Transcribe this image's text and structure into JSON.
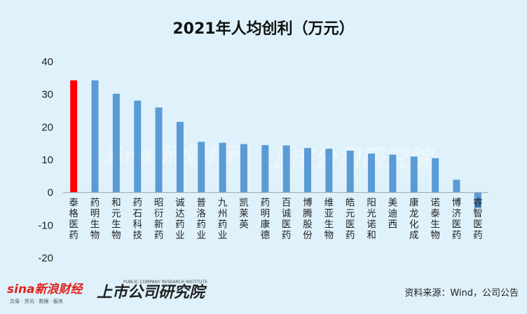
{
  "chart_data": {
    "type": "bar",
    "title": "2021年人均创利（万元）",
    "categories": [
      "泰格医药",
      "药明生物",
      "和元生物",
      "药石科技",
      "昭衍新药",
      "诚达药业",
      "普洛药业",
      "九州药业",
      "凯莱英",
      "药明康德",
      "百诚医药",
      "博腾股份",
      "维亚生物",
      "皓元医药",
      "阳光诺和",
      "美迪西",
      "康龙化成",
      "诺泰生物",
      "博济医药",
      "睿智医药"
    ],
    "values": [
      34.3,
      34.3,
      30.2,
      28.1,
      26.0,
      21.6,
      15.5,
      15.2,
      14.8,
      14.5,
      14.4,
      13.6,
      13.4,
      12.8,
      11.9,
      11.6,
      11.0,
      10.5,
      3.9,
      -4.8
    ],
    "ylim": [
      -20,
      40
    ],
    "yticks": [
      "-20",
      "-10",
      "0",
      "10",
      "20",
      "30",
      "40"
    ],
    "grid": false,
    "colors": {
      "highlight": "#ff0000",
      "bar": "#5b9bd5",
      "background": "#dff2fb"
    }
  },
  "source": "资料来源：Wind，公司公告",
  "logos": {
    "sina": "sina新浪财经",
    "sina_sub": "交易 · 资讯 · 数据 · 服务",
    "institute": "上市公司研究院",
    "institute_sub": "PUBLIC COMPANY RESEARCH INSTITUTE"
  }
}
